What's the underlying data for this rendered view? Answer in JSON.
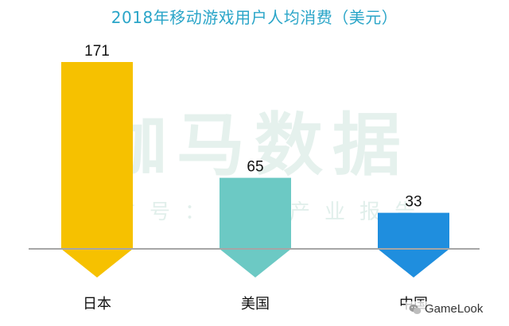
{
  "chart_data": {
    "type": "bar",
    "title": "2018年移动游戏用户人均消费（美元）",
    "categories": [
      "日本",
      "美国",
      "中国"
    ],
    "values": [
      171,
      65,
      33
    ],
    "colors": [
      "#f6c100",
      "#6cc9c4",
      "#1f8ede"
    ],
    "ylim": [
      0,
      171
    ],
    "grid": false,
    "legend": "none",
    "data_labels": true
  },
  "watermark": {
    "main": "伽马数据",
    "sub": "微信号：游戏产业报告"
  },
  "source_badge": {
    "text": "GameLook",
    "icon": "wechat-icon"
  },
  "axis_color": "#a6a6a6"
}
